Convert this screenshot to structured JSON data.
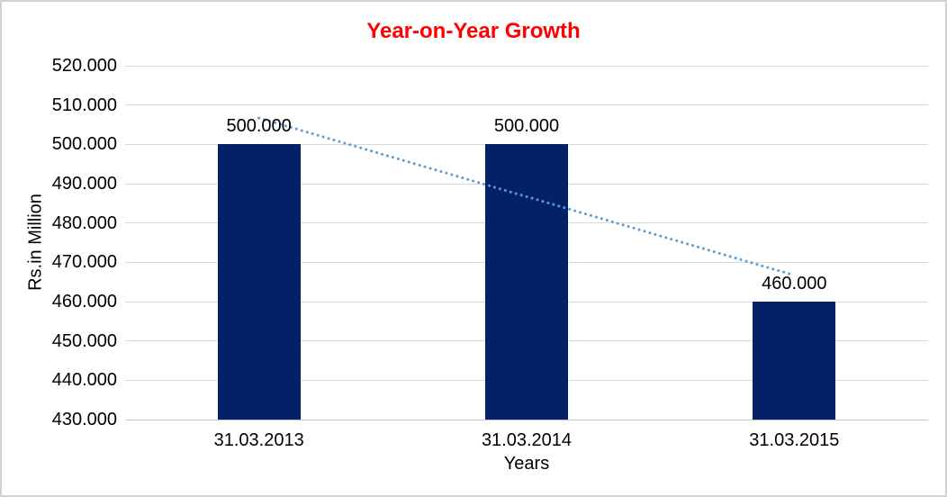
{
  "chart_data": {
    "type": "bar",
    "title": "Year-on-Year Growth",
    "xlabel": "Years",
    "ylabel": "Rs.in Million",
    "categories": [
      "31.03.2013",
      "31.03.2014",
      "31.03.2015"
    ],
    "values": [
      500,
      500,
      460
    ],
    "value_labels": [
      "500.000",
      "500.000",
      "460.000"
    ],
    "ylim": [
      430,
      520
    ],
    "ytick_step": 10,
    "ytick_labels_top_to_bottom": [
      "520.000",
      "510.000",
      "500.000",
      "490.000",
      "480.000",
      "470.000",
      "460.000",
      "450.000",
      "440.000",
      "430.000"
    ],
    "grid": true,
    "legend_position": "none",
    "trendline": {
      "kind": "linear",
      "style": "dotted",
      "start_value": 506.7,
      "end_value": 466.7
    },
    "colors": {
      "title": "#ff0000",
      "bar": "#052166",
      "gridline": "#d9d9d9",
      "axis_line": "#c6c6c6",
      "trendline": "#5b9bd5",
      "text": "#000000",
      "frame_border": "#d3d3d3"
    }
  }
}
